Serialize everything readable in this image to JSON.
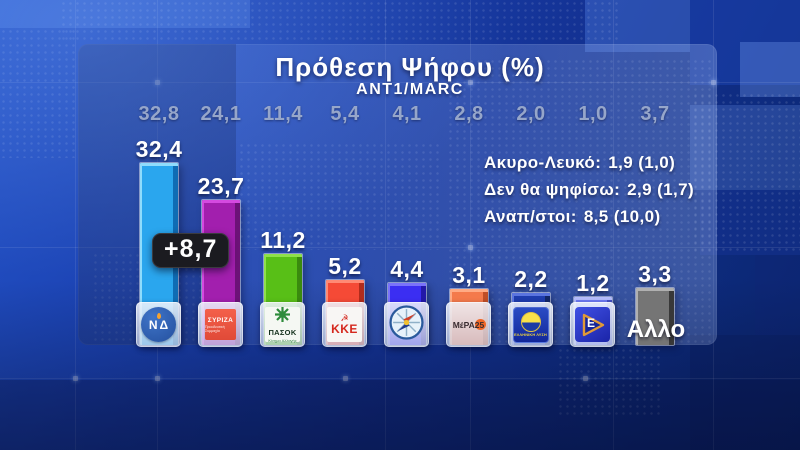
{
  "title": "Πρόθεση Ψήφου (%)",
  "subtitle": "ANT1/MARC",
  "diff_badge": "+8,7",
  "info": {
    "lines": [
      {
        "label": "Ακυρο-Λευκό:",
        "value": "1,9 (1,0)"
      },
      {
        "label": "Δεν θα ψηφίσω:",
        "value": "2,9 (1,7)"
      },
      {
        "label": "Αναπ/στοι:",
        "value": "8,5 (10,0)"
      }
    ]
  },
  "chart_data": {
    "type": "bar",
    "title": "Πρόθεση Ψήφου (%)",
    "source": "ANT1/MARC",
    "unit": "%",
    "annotation": "+8,7",
    "categories": [
      "ΝΔ",
      "ΣΥΡΙΖΑ",
      "ΠΑΣΟΚ",
      "ΚΚΕ",
      "Πλεύση Ελευθερίας",
      "ΜέΡΑ25",
      "Ελληνική Λύση",
      "ΝΙΚΗ",
      "Αλλο"
    ],
    "series": [
      {
        "name": "current",
        "values": [
          32.4,
          23.7,
          11.2,
          5.2,
          4.4,
          3.1,
          2.2,
          1.2,
          3.3
        ]
      },
      {
        "name": "previous",
        "values": [
          32.8,
          24.1,
          11.4,
          5.4,
          4.1,
          2.8,
          2.0,
          1.0,
          3.7
        ]
      }
    ],
    "parties": [
      {
        "key": "nd",
        "name": "ΝΔ",
        "value": 32.4,
        "value_label": "32,4",
        "prev_label": "32,8",
        "color": "#2aa6ee",
        "color_side": "#0f6cb4",
        "color_hi": "#8fdcfc",
        "logo": {
          "type": "nd",
          "text": "ΝΔ"
        }
      },
      {
        "key": "syriza",
        "name": "ΣΥΡΙΖΑ",
        "value": 23.7,
        "value_label": "23,7",
        "prev_label": "24,1",
        "color": "#a21fae",
        "color_side": "#6c1277",
        "color_hi": "#d44ae0",
        "logo": {
          "type": "syriza",
          "text": "ΣΥΡΙΖΑ",
          "sub": "Προοδευτική Συμμαχία"
        }
      },
      {
        "key": "pasok",
        "name": "ΠΑΣΟΚ",
        "value": 11.2,
        "value_label": "11,2",
        "prev_label": "11,4",
        "color": "#58bf17",
        "color_side": "#3a8a0e",
        "color_hi": "#8fe04a",
        "logo": {
          "type": "pasok",
          "text": "ΠΑΣΟΚ",
          "sub": "Κίνημα Αλλαγής"
        }
      },
      {
        "key": "kke",
        "name": "ΚΚΕ",
        "value": 5.2,
        "value_label": "5,2",
        "prev_label": "5,4",
        "color": "#f54a36",
        "color_side": "#b02c1c",
        "color_hi": "#ff8a74",
        "logo": {
          "type": "kke",
          "text": "ΚΚΕ",
          "symbol": "☭"
        }
      },
      {
        "key": "plefsi-eleftherias",
        "name": "Πλεύση Ελευθερίας",
        "value": 4.4,
        "value_label": "4,4",
        "prev_label": "4,1",
        "color": "#3b2ef2",
        "color_side": "#2318a8",
        "color_hi": "#7a72fa",
        "logo": {
          "type": "compass"
        }
      },
      {
        "key": "mera25",
        "name": "ΜέΡΑ25",
        "value": 3.1,
        "value_label": "3,1",
        "prev_label": "2,8",
        "color": "#f47a4b",
        "color_side": "#c04e26",
        "color_hi": "#ffab84",
        "logo": {
          "type": "mera25",
          "text": "ΜέΡΑ25"
        }
      },
      {
        "key": "elliniki-lysi",
        "name": "Ελληνική Λύση",
        "value": 2.2,
        "value_label": "2,2",
        "prev_label": "2,0",
        "color": "#1e3cae",
        "color_side": "#122668",
        "color_hi": "#5a74e0",
        "logo": {
          "type": "lysi",
          "text": "ΕΛΛΗΝΙΚΗ ΛΥΣΗ"
        }
      },
      {
        "key": "niki",
        "name": "ΝΙΚΗ",
        "value": 1.2,
        "value_label": "1,2",
        "prev_label": "1,0",
        "color": "#6e7af4",
        "color_side": "#434fc2",
        "color_hi": "#b4bcfc",
        "logo": {
          "type": "niki",
          "text": "Ε"
        }
      },
      {
        "key": "other",
        "name": "Αλλο",
        "value": 3.3,
        "value_label": "3,3",
        "prev_label": "3,7",
        "color": "#757575",
        "color_side": "#383838",
        "color_hi": "#b0b0b0",
        "logo": {
          "type": "text",
          "text": "Αλλο"
        }
      }
    ]
  }
}
